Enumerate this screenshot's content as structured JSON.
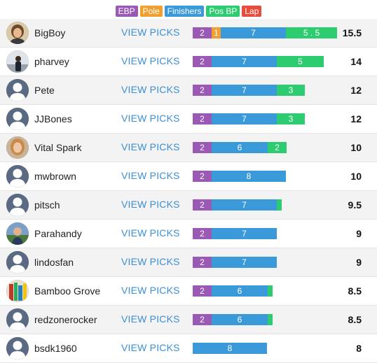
{
  "legend": [
    {
      "label": "EBP",
      "color": "#9b59b6"
    },
    {
      "label": "Pole",
      "color": "#f0a030"
    },
    {
      "label": "Finishers",
      "color": "#3a9ad9"
    },
    {
      "label": "Pos BP",
      "color": "#2ecc71"
    },
    {
      "label": "Lap",
      "color": "#e74c3c"
    }
  ],
  "view_label": "VIEW PICKS",
  "colors": {
    "ebp": "#9b59b6",
    "pole": "#f0a030",
    "fin": "#3a9ad9",
    "pos": "#2ecc71",
    "lap": "#e74c3c"
  },
  "rows": [
    {
      "name": "BigBoy",
      "score": "15.5",
      "avatar": "photo-portrait",
      "segments": [
        {
          "type": "ebp",
          "value": 2,
          "label": "2"
        },
        {
          "type": "pole",
          "value": 1,
          "label": "1"
        },
        {
          "type": "fin",
          "value": 7,
          "label": "7"
        },
        {
          "type": "pos",
          "value": 5.5,
          "label": "5 . 5"
        }
      ]
    },
    {
      "name": "pharvey",
      "score": "14",
      "avatar": "photo-dark",
      "segments": [
        {
          "type": "ebp",
          "value": 2,
          "label": "2"
        },
        {
          "type": "fin",
          "value": 7,
          "label": "7"
        },
        {
          "type": "pos",
          "value": 5,
          "label": "5"
        }
      ]
    },
    {
      "name": "Pete",
      "score": "12",
      "avatar": "default-user-icon",
      "segments": [
        {
          "type": "ebp",
          "value": 2,
          "label": "2"
        },
        {
          "type": "fin",
          "value": 7,
          "label": "7"
        },
        {
          "type": "pos",
          "value": 3,
          "label": "3"
        }
      ]
    },
    {
      "name": "JJBones",
      "score": "12",
      "avatar": "default-user-icon",
      "segments": [
        {
          "type": "ebp",
          "value": 2,
          "label": "2"
        },
        {
          "type": "fin",
          "value": 7,
          "label": "7"
        },
        {
          "type": "pos",
          "value": 3,
          "label": "3"
        }
      ]
    },
    {
      "name": "Vital Spark",
      "score": "10",
      "avatar": "photo-woman",
      "segments": [
        {
          "type": "ebp",
          "value": 2,
          "label": "2"
        },
        {
          "type": "fin",
          "value": 6,
          "label": "6"
        },
        {
          "type": "pos",
          "value": 2,
          "label": "2"
        }
      ]
    },
    {
      "name": "mwbrown",
      "score": "10",
      "avatar": "default-user-icon",
      "segments": [
        {
          "type": "ebp",
          "value": 2,
          "label": "2"
        },
        {
          "type": "fin",
          "value": 8,
          "label": "8"
        }
      ]
    },
    {
      "name": "pitsch",
      "score": "9.5",
      "avatar": "default-user-icon",
      "segments": [
        {
          "type": "ebp",
          "value": 2,
          "label": "2"
        },
        {
          "type": "fin",
          "value": 7,
          "label": "7"
        },
        {
          "type": "pos",
          "value": 0.5,
          "label": ""
        }
      ]
    },
    {
      "name": "Parahandy",
      "score": "9",
      "avatar": "photo-outdoor",
      "segments": [
        {
          "type": "ebp",
          "value": 2,
          "label": "2"
        },
        {
          "type": "fin",
          "value": 7,
          "label": "7"
        }
      ]
    },
    {
      "name": "lindosfan",
      "score": "9",
      "avatar": "default-user-icon",
      "segments": [
        {
          "type": "ebp",
          "value": 2,
          "label": "2"
        },
        {
          "type": "fin",
          "value": 7,
          "label": "7"
        }
      ]
    },
    {
      "name": "Bamboo Grove",
      "score": "8.5",
      "avatar": "photo-colorful",
      "segments": [
        {
          "type": "ebp",
          "value": 2,
          "label": "2"
        },
        {
          "type": "fin",
          "value": 6,
          "label": "6"
        },
        {
          "type": "pos",
          "value": 0.5,
          "label": ""
        }
      ]
    },
    {
      "name": "redzonerocker",
      "score": "8.5",
      "avatar": "default-user-icon",
      "segments": [
        {
          "type": "ebp",
          "value": 2,
          "label": "2"
        },
        {
          "type": "fin",
          "value": 6,
          "label": "6"
        },
        {
          "type": "pos",
          "value": 0.5,
          "label": ""
        }
      ]
    },
    {
      "name": "bsdk1960",
      "score": "8",
      "avatar": "default-user-icon",
      "segments": [
        {
          "type": "fin",
          "value": 8,
          "label": "8"
        }
      ]
    }
  ]
}
